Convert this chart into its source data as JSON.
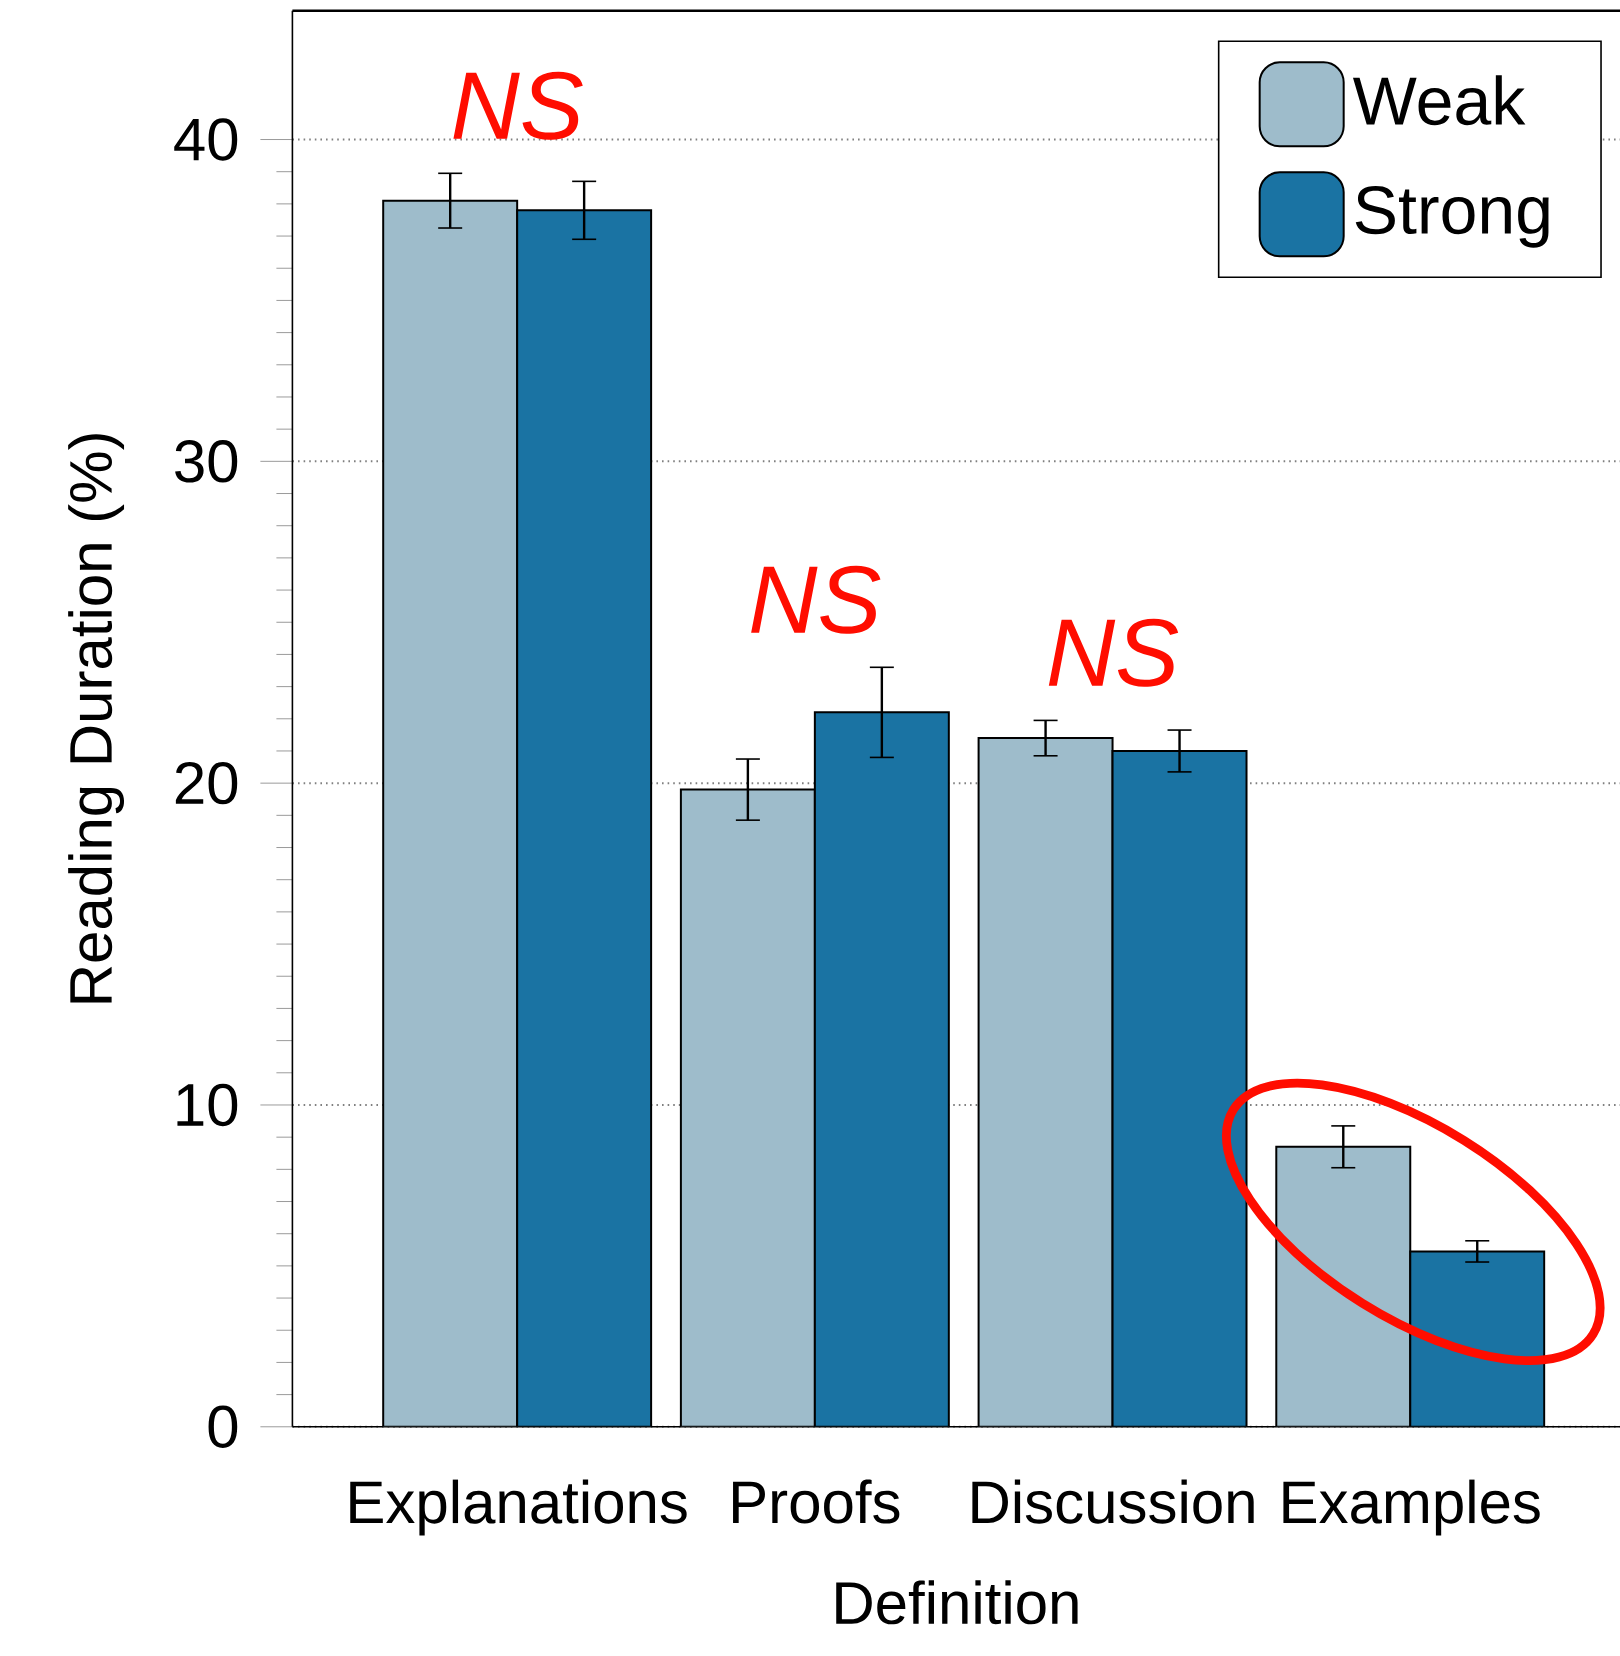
{
  "chart_data": {
    "type": "bar",
    "xlabel": "Definition",
    "ylabel": "Reading Duration (%)",
    "categories": [
      "Explanations",
      "Proofs",
      "Discussion",
      "Examples"
    ],
    "series": [
      {
        "name": "Weak",
        "color": "#9ebccb",
        "values": [
          38.1,
          19.8,
          21.4,
          8.7
        ],
        "errors": [
          0.85,
          0.95,
          0.55,
          0.65
        ]
      },
      {
        "name": "Strong",
        "color": "#1a73a3",
        "values": [
          37.8,
          22.2,
          21.0,
          5.45
        ],
        "errors": [
          0.9,
          1.4,
          0.65,
          0.33
        ]
      }
    ],
    "ylim": [
      0,
      44
    ],
    "yticks": [
      0,
      10,
      20,
      30,
      40
    ],
    "grid": "y",
    "legend": "top right",
    "annotations": [
      "NS",
      "NS",
      "NS"
    ]
  }
}
